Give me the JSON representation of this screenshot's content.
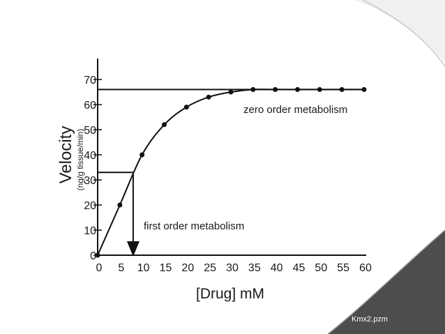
{
  "chart_data": {
    "type": "line",
    "xlabel": "[Drug] mM",
    "ylabel": "Velocity",
    "ylabel_unit": "(ng/g tissue/min)",
    "xlim": [
      0,
      60
    ],
    "ylim": [
      0,
      70
    ],
    "x_ticks": [
      "0",
      "5",
      "10",
      "15",
      "20",
      "25",
      "30",
      "35",
      "40",
      "45",
      "50",
      "55",
      "60"
    ],
    "y_ticks": [
      "0",
      "10",
      "20",
      "30",
      "40",
      "50",
      "60",
      "70"
    ],
    "x": [
      0,
      5,
      10,
      15,
      20,
      25,
      30,
      35,
      40,
      45,
      50,
      55,
      60
    ],
    "series": [
      {
        "values": [
          0,
          20,
          40,
          52,
          59,
          63,
          65,
          66,
          66,
          66,
          66,
          66,
          66
        ]
      }
    ],
    "vmax_line": 66,
    "half_vmax": 33,
    "km": 8,
    "grid": false,
    "annotations": {
      "zero_order": "zero order metabolism",
      "first_order": "first order metabolism"
    }
  },
  "footer": {
    "credit": "Kmx2.pzm"
  },
  "colors": {
    "ink": "#111111",
    "footer": "#4d4d4d",
    "curl": "#e6e6e6"
  }
}
